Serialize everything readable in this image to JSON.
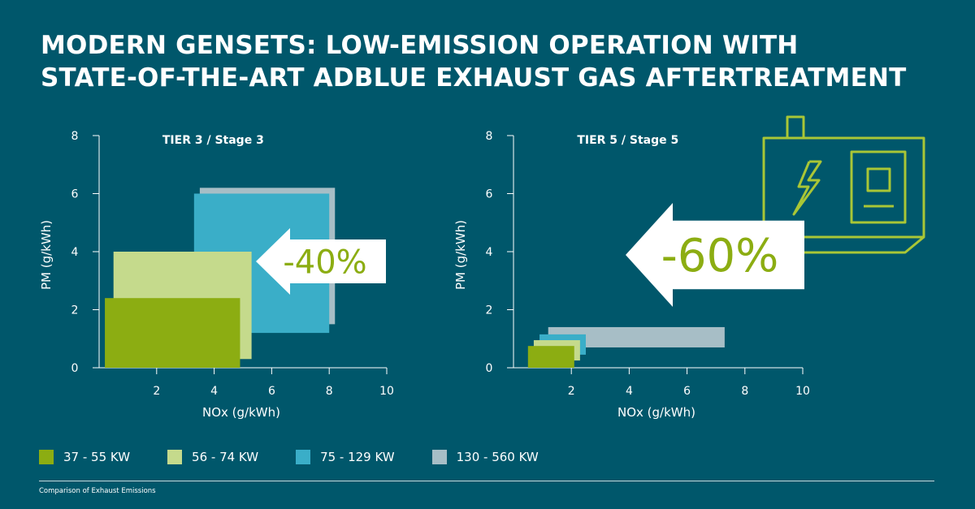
{
  "title": {
    "line1": "MODERN GENSETS: LOW-EMISSION OPERATION WITH",
    "line2": "STATE-OF-THE-ART ADBLUE EXHAUST GAS AFTERTREATMENT"
  },
  "colors": {
    "background": "#00576b",
    "series": [
      "#8cad12",
      "#c5da8c",
      "#3aaec8",
      "#a7bec6"
    ],
    "arrow": "#ffffff",
    "arrow_text": "#8cad12",
    "icon": "#a9c636"
  },
  "icon": "generator-icon",
  "chart_data": [
    {
      "type": "rect-regions",
      "title": "TIER 3 / Stage 3",
      "xlabel": "NOx (g/kWh)",
      "ylabel": "PM (g/kWh)",
      "xlim": [
        0,
        10
      ],
      "ylim": [
        0,
        8
      ],
      "xticks": [
        "2",
        "4",
        "6",
        "8",
        "10"
      ],
      "yticks": [
        "0",
        "2",
        "4",
        "6",
        "8"
      ],
      "reduction_label": "-40%",
      "series": [
        {
          "name": "130 - 560 KW",
          "x": [
            3.5,
            8.2
          ],
          "y": [
            1.5,
            6.2
          ]
        },
        {
          "name": "75 - 129 KW",
          "x": [
            3.3,
            8.0
          ],
          "y": [
            1.2,
            6.0
          ]
        },
        {
          "name": "56 - 74 KW",
          "x": [
            0.5,
            5.3
          ],
          "y": [
            0.3,
            4.0
          ]
        },
        {
          "name": "37 - 55 KW",
          "x": [
            0.2,
            4.9
          ],
          "y": [
            0.0,
            2.4
          ]
        }
      ]
    },
    {
      "type": "rect-regions",
      "title": "TIER 5 / Stage 5",
      "xlabel": "NOx (g/kWh)",
      "ylabel": "PM (g/kWh)",
      "xlim": [
        0,
        10
      ],
      "ylim": [
        0,
        8
      ],
      "xticks": [
        "2",
        "4",
        "6",
        "8",
        "10"
      ],
      "yticks": [
        "0",
        "2",
        "4",
        "6",
        "8"
      ],
      "reduction_label": "-60%",
      "series": [
        {
          "name": "130 - 560 KW",
          "x": [
            1.2,
            7.3
          ],
          "y": [
            0.7,
            1.4
          ]
        },
        {
          "name": "75 - 129 KW",
          "x": [
            0.9,
            2.5
          ],
          "y": [
            0.45,
            1.15
          ]
        },
        {
          "name": "56 - 74 KW",
          "x": [
            0.7,
            2.3
          ],
          "y": [
            0.25,
            0.95
          ]
        },
        {
          "name": "37 - 55 KW",
          "x": [
            0.5,
            2.1
          ],
          "y": [
            0.0,
            0.75
          ]
        }
      ]
    }
  ],
  "legend": [
    {
      "label": "37 - 55 KW",
      "color": "#8cad12"
    },
    {
      "label": "56 - 74 KW",
      "color": "#c5da8c"
    },
    {
      "label": "75 - 129 KW",
      "color": "#3aaec8"
    },
    {
      "label": "130 - 560 KW",
      "color": "#a7bec6"
    }
  ],
  "caption": "Comparison of Exhaust Emissions"
}
